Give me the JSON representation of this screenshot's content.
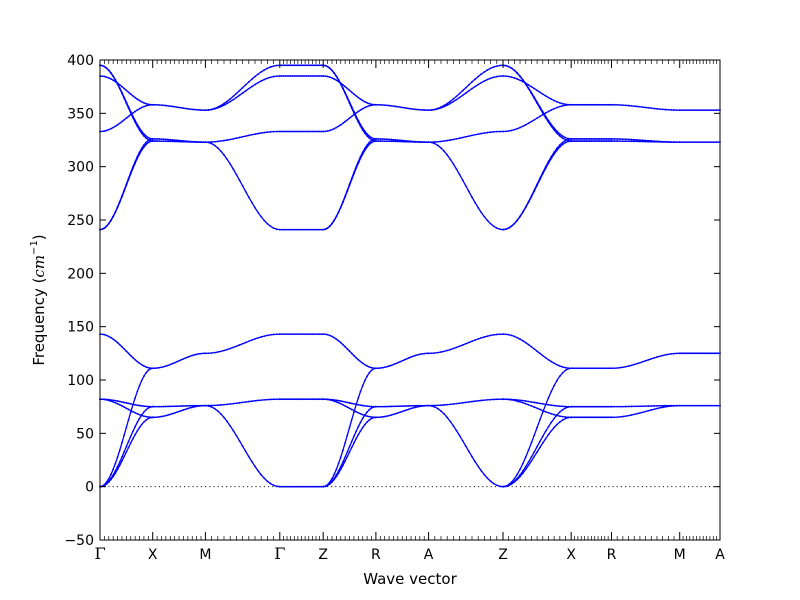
{
  "chart_data": {
    "type": "line",
    "title": "",
    "xlabel": "Wave vector",
    "ylabel_prefix": "Frequency (",
    "ylabel_unit_base": "cm",
    "ylabel_unit_exp": "−1",
    "ylabel_suffix": ")",
    "ylim": [
      -50,
      400
    ],
    "yticks": [
      -50,
      0,
      50,
      100,
      150,
      200,
      250,
      300,
      350,
      400
    ],
    "ytick_labels": [
      "−50",
      "0",
      "50",
      "100",
      "150",
      "200",
      "250",
      "300",
      "350",
      "400"
    ],
    "grid": false,
    "legend": false,
    "zero_line": true,
    "color": "#0000ff",
    "path": [
      {
        "label": "Γ",
        "x": 0.0
      },
      {
        "label": "X",
        "x": 0.85
      },
      {
        "label": "M",
        "x": 1.7
      },
      {
        "label": "Γ",
        "x": 2.9
      },
      {
        "label": "Z",
        "x": 3.6
      },
      {
        "label": "R",
        "x": 4.45
      },
      {
        "label": "A",
        "x": 5.3
      },
      {
        "label": "Z",
        "x": 6.5
      },
      {
        "label": "X",
        "x": 7.6
      },
      {
        "label": "R",
        "x": 8.25
      },
      {
        "label": "M",
        "x": 9.35
      },
      {
        "label": "A",
        "x": 10.0
      }
    ],
    "segments": [
      {
        "from": "Γ",
        "to": "X",
        "bands": [
          [
            0,
            65
          ],
          [
            0,
            75
          ],
          [
            0,
            111
          ],
          [
            82,
            65
          ],
          [
            82,
            75
          ],
          [
            143,
            111
          ],
          [
            241,
            324
          ],
          [
            241,
            326
          ],
          [
            333,
            358
          ],
          [
            385,
            358
          ],
          [
            395,
            326
          ],
          [
            395,
            324
          ]
        ]
      },
      {
        "from": "X",
        "to": "M",
        "bands": [
          [
            65,
            76
          ],
          [
            75,
            76
          ],
          [
            111,
            125
          ],
          [
            326,
            323
          ],
          [
            324,
            323
          ],
          [
            358,
            353
          ]
        ]
      },
      {
        "from": "M",
        "to": "Γ",
        "bands": [
          [
            76,
            0
          ],
          [
            76,
            82
          ],
          [
            125,
            143
          ],
          [
            323,
            241
          ],
          [
            323,
            333
          ],
          [
            353,
            385
          ],
          [
            353,
            395
          ]
        ]
      },
      {
        "from": "Γ",
        "to": "Z",
        "bands": [
          [
            0,
            0
          ],
          [
            82,
            82
          ],
          [
            143,
            143
          ],
          [
            241,
            241
          ],
          [
            333,
            333
          ],
          [
            385,
            385
          ],
          [
            395,
            395
          ]
        ]
      },
      {
        "from": "Z",
        "to": "R",
        "bands": [
          [
            0,
            65
          ],
          [
            0,
            75
          ],
          [
            0,
            111
          ],
          [
            82,
            65
          ],
          [
            82,
            75
          ],
          [
            143,
            111
          ],
          [
            241,
            324
          ],
          [
            241,
            326
          ],
          [
            333,
            358
          ],
          [
            385,
            358
          ],
          [
            395,
            326
          ],
          [
            395,
            324
          ]
        ]
      },
      {
        "from": "R",
        "to": "A",
        "bands": [
          [
            65,
            76
          ],
          [
            75,
            76
          ],
          [
            111,
            125
          ],
          [
            326,
            323
          ],
          [
            324,
            323
          ],
          [
            358,
            353
          ]
        ]
      },
      {
        "from": "A",
        "to": "Z",
        "bands": [
          [
            76,
            0
          ],
          [
            76,
            82
          ],
          [
            125,
            143
          ],
          [
            323,
            241
          ],
          [
            323,
            333
          ],
          [
            353,
            385
          ],
          [
            353,
            395
          ]
        ]
      },
      {
        "from": "Z",
        "to": "X",
        "bands": [
          [
            0,
            65
          ],
          [
            0,
            75
          ],
          [
            0,
            111
          ],
          [
            82,
            65
          ],
          [
            82,
            75
          ],
          [
            143,
            111
          ],
          [
            241,
            324
          ],
          [
            241,
            326
          ],
          [
            333,
            358
          ],
          [
            385,
            358
          ],
          [
            395,
            326
          ],
          [
            395,
            324
          ]
        ]
      },
      {
        "from": "X",
        "to": "R",
        "bands": [
          [
            65,
            65
          ],
          [
            75,
            75
          ],
          [
            111,
            111
          ],
          [
            324,
            324
          ],
          [
            326,
            326
          ],
          [
            358,
            358
          ]
        ]
      },
      {
        "from": "R",
        "to": "M",
        "bands": [
          [
            65,
            76
          ],
          [
            75,
            76
          ],
          [
            111,
            125
          ],
          [
            324,
            323
          ],
          [
            326,
            323
          ],
          [
            358,
            353
          ]
        ]
      },
      {
        "from": "M",
        "to": "A",
        "bands": [
          [
            76,
            76
          ],
          [
            125,
            125
          ],
          [
            323,
            323
          ],
          [
            353,
            353
          ]
        ]
      }
    ]
  }
}
